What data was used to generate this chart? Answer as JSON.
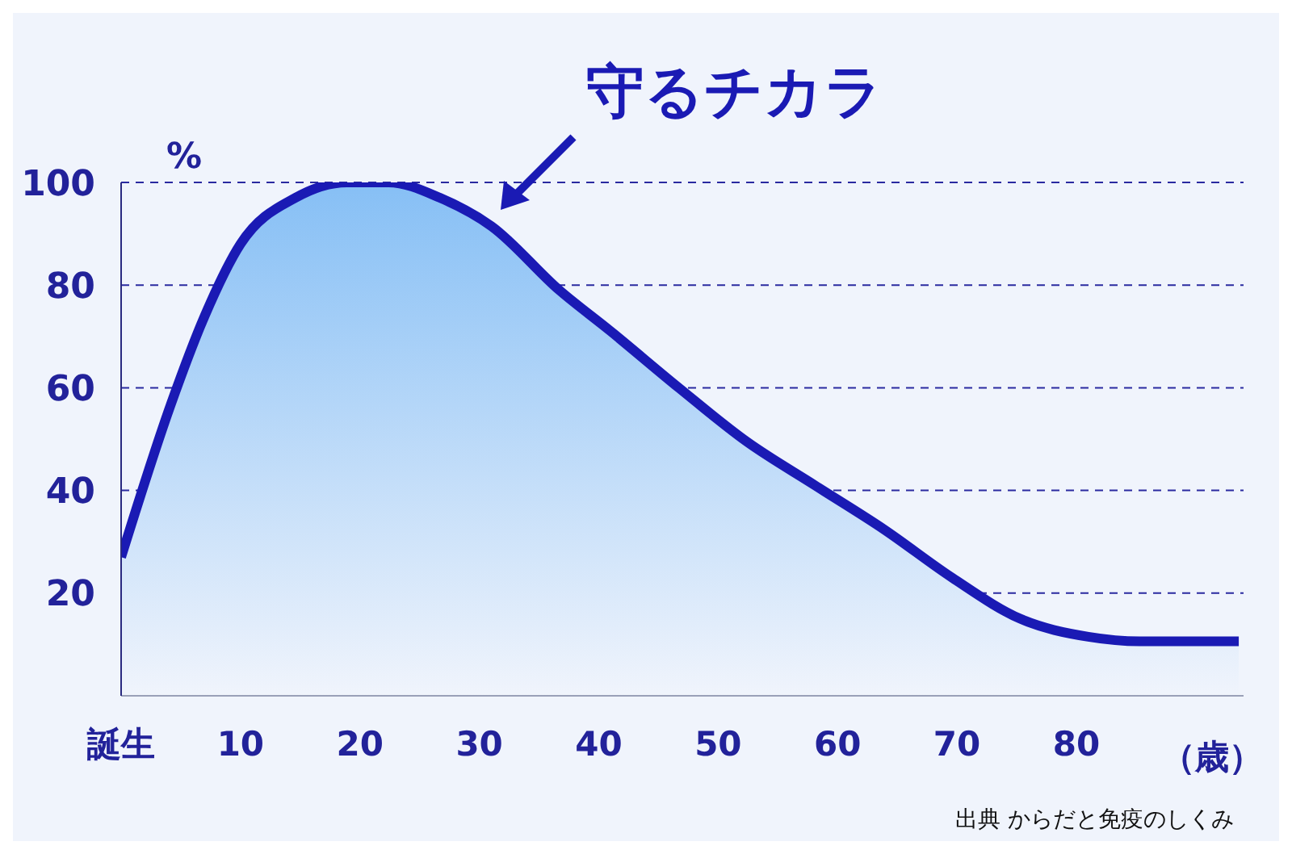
{
  "chart_data": {
    "type": "area",
    "ylabel": "%",
    "xlabel": "（歳）",
    "x": [
      0,
      4.2,
      7,
      10,
      14.6,
      18.9,
      22.4,
      26.7,
      31,
      36.7,
      41,
      46.7,
      52.4,
      58.1,
      63.9,
      69.6,
      75.3,
      81,
      85.3,
      93.6
    ],
    "series": [
      {
        "color": "#1a1ab4",
        "values": [
          27,
          57,
          74,
          88,
          97,
          100,
          100,
          97,
          91.5,
          79,
          71,
          60,
          49.5,
          41,
          32.4,
          23,
          15,
          11.5,
          10.6,
          10.6
        ]
      }
    ],
    "xlim": [
      0,
      94
    ],
    "xticks": [
      {
        "value": 0,
        "label": "誕生"
      },
      10,
      20,
      30,
      40,
      50,
      60,
      70,
      80
    ],
    "ylim": [
      0,
      100
    ],
    "yticks": [
      20,
      40,
      60,
      80,
      100
    ],
    "grid": "y",
    "line_style": "solid",
    "annotations": [
      {
        "text": "守るチカラ",
        "x": 31,
        "y": 92
      },
      "出典 からだと免疫のしくみ"
    ]
  }
}
